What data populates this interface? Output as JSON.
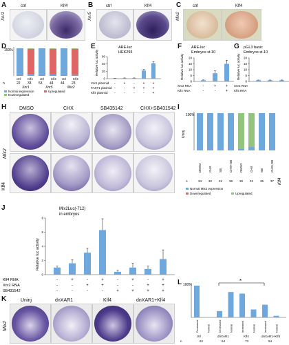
{
  "panels": {
    "A": {
      "letter": "A",
      "gene": "Xnr1",
      "cols": [
        "ctrl",
        "Klf4"
      ]
    },
    "B": {
      "letter": "B",
      "gene": "Xnr5",
      "cols": [
        "ctrl",
        "Klf4"
      ]
    },
    "C": {
      "letter": "C",
      "gene": "Mix2",
      "cols": [
        "ctrl",
        "Klf4"
      ]
    },
    "D": {
      "letter": "D",
      "groups": [
        "Xnr1",
        "Xnr5",
        "Mix2"
      ],
      "cols": [
        "ctrl",
        "Klf4",
        "ctrl",
        "Klf4",
        "ctrl",
        "Klf4"
      ],
      "n": [
        "n",
        "22",
        "33",
        "53",
        "44",
        "44",
        "23"
      ],
      "ytop": "100%",
      "legend": [
        "Normal expression",
        "Upregulated",
        "Downregulated"
      ]
    },
    "E": {
      "letter": "E",
      "title": "ARE-luc",
      "subtitle": "HEK293",
      "ylabel": "Relative luc activity",
      "rows": [
        "Xnr1 plasmid",
        "FAST1 plasmid",
        "Klf4 plasmid"
      ],
      "signs": [
        [
          "-",
          "+",
          "-",
          "+",
          "+"
        ],
        [
          "-",
          "-",
          "+",
          "+",
          "+"
        ],
        [
          "-",
          "-",
          "-",
          "-",
          "+"
        ]
      ]
    },
    "F": {
      "letter": "F",
      "title": "ARE-luc",
      "subtitle": "Embryos st.10",
      "ylabel": "Relative luc activity",
      "rows": [
        "Xnr2 RNA",
        "Klf4 RNA"
      ],
      "signs": [
        [
          "-",
          "+",
          "+"
        ],
        [
          "-",
          "-",
          "+"
        ]
      ]
    },
    "G": {
      "letter": "G",
      "title": "pGL3 basic",
      "subtitle": "Embryos st.10",
      "ylabel": "Relative luc activity",
      "rows": [
        "Xnr2 RNA",
        "Klf4 RNA"
      ]
    },
    "H": {
      "letter": "H",
      "gene": "Mix2",
      "cols": [
        "DMSO",
        "CHX",
        "SB435142",
        "CHX+SB431542"
      ],
      "row_label": "Klf4"
    },
    "I": {
      "letter": "I",
      "ytop": "100%",
      "uninj": "Uninj",
      "klf4": "Klf4",
      "cols": [
        "DMSO",
        "CHX",
        "SB",
        "CHX+SB",
        "DMSO",
        "CHX",
        "SB",
        "CHX+SB"
      ],
      "n": [
        "n",
        "34",
        "32",
        "31",
        "36",
        "30",
        "31",
        "35",
        "37"
      ],
      "legend": [
        "Normal Mix2 expression",
        "Downregulated",
        "Upregulated"
      ]
    },
    "J": {
      "letter": "J",
      "title": "Mix2Luc(-712)",
      "subtitle": "in embryos",
      "ylabel": "Relative luc activity",
      "rows": [
        "Klf4 RNA",
        "Xnr2 RNA",
        "SB431542"
      ]
    },
    "K": {
      "letter": "K",
      "gene": "Mix2",
      "cols": [
        "Uninj",
        "dnXAR1",
        "Klf4",
        "dnXAR1+Klf4"
      ]
    },
    "L": {
      "letter": "L",
      "ytop": "100%",
      "star": "*",
      "groups": [
        "ctrl",
        "dnXAR1",
        "Klf4",
        "dnXAR1+Klf4"
      ],
      "n": [
        "n",
        "62",
        "64",
        "73",
        "54"
      ],
      "bar_labels": [
        "Decreased",
        "Normal",
        "Decreased",
        "Normal",
        "Increased",
        "Normal",
        "Increased",
        "Normal"
      ]
    }
  },
  "chart_data": [
    {
      "type": "bar",
      "panel": "D",
      "stacked": true,
      "categories": [
        "Xnr1 ctrl",
        "Xnr1 Klf4",
        "Xnr5 ctrl",
        "Xnr5 Klf4",
        "Mix2 ctrl",
        "Mix2 Klf4"
      ],
      "series": [
        {
          "name": "Normal expression",
          "values": [
            100,
            6,
            100,
            5,
            100,
            4
          ]
        },
        {
          "name": "Upregulated",
          "values": [
            0,
            92,
            0,
            93,
            0,
            94
          ]
        },
        {
          "name": "Downregulated",
          "values": [
            0,
            2,
            0,
            2,
            0,
            2
          ]
        }
      ],
      "ylim": [
        0,
        100
      ]
    },
    {
      "type": "bar",
      "panel": "E",
      "categories": [
        "1",
        "2",
        "3",
        "4",
        "5"
      ],
      "values": [
        1,
        1.5,
        1.5,
        22,
        42
      ],
      "errors": [
        0.3,
        0.5,
        0.5,
        3,
        4
      ],
      "ylim": [
        0,
        60
      ],
      "yticks": [
        0,
        20,
        40,
        60
      ]
    },
    {
      "type": "bar",
      "panel": "F",
      "categories": [
        "1",
        "2",
        "3"
      ],
      "values": [
        1,
        7,
        15
      ],
      "errors": [
        0.3,
        2,
        3
      ],
      "ylim": [
        0,
        20
      ],
      "yticks": [
        0,
        5,
        10,
        15,
        20
      ]
    },
    {
      "type": "bar",
      "panel": "G",
      "categories": [
        "1",
        "2",
        "3"
      ],
      "values": [
        1,
        1,
        1
      ],
      "errors": [
        0.2,
        0.2,
        0.2
      ],
      "ylim": [
        0,
        20
      ],
      "yticks": [
        0,
        5,
        10,
        15,
        20
      ]
    },
    {
      "type": "bar",
      "panel": "I",
      "stacked": true,
      "categories": [
        "Uninj DMSO",
        "Uninj CHX",
        "Uninj SB",
        "Uninj CHX+SB",
        "Klf4 DMSO",
        "Klf4 CHX",
        "Klf4 SB",
        "Klf4 CHX+SB"
      ],
      "series": [
        {
          "name": "Normal Mix2 expression",
          "values": [
            100,
            100,
            100,
            100,
            5,
            10,
            100,
            100
          ]
        },
        {
          "name": "Downregulated",
          "values": [
            0,
            0,
            0,
            0,
            0,
            0,
            0,
            0
          ]
        },
        {
          "name": "Upregulated",
          "values": [
            0,
            0,
            0,
            0,
            95,
            90,
            0,
            0
          ]
        }
      ],
      "ylim": [
        0,
        100
      ]
    },
    {
      "type": "bar",
      "panel": "J",
      "categories": [
        "1",
        "2",
        "3",
        "4",
        "5",
        "6",
        "7",
        "8"
      ],
      "values": [
        1,
        1.6,
        3.1,
        6.3,
        0.4,
        1,
        0.8,
        2.2
      ],
      "errors": [
        0.2,
        0.5,
        0.6,
        1.6,
        0.2,
        0.6,
        0.4,
        1.3
      ],
      "ylim": [
        0,
        8
      ],
      "yticks": [
        0,
        2,
        4,
        6,
        8
      ],
      "signs": [
        [
          "-",
          "+",
          "-",
          "+",
          "-",
          "+",
          "-",
          "+"
        ],
        [
          "-",
          "-",
          "+",
          "+",
          "-",
          "-",
          "+",
          "+"
        ],
        [
          "-",
          "-",
          "-",
          "-",
          "+",
          "+",
          "+",
          "+"
        ]
      ]
    },
    {
      "type": "bar",
      "panel": "L",
      "categories": [
        "ctrl Decreased",
        "ctrl Normal",
        "dnXAR1 Decreased",
        "dnXAR1 Normal",
        "Klf4 Increased",
        "Klf4 Normal",
        "dnXAR1+Klf4 Increased",
        "dnXAR1+Klf4 Normal"
      ],
      "values": [
        100,
        0,
        20,
        80,
        75,
        25,
        40,
        5
      ],
      "ylim": [
        0,
        100
      ]
    }
  ]
}
